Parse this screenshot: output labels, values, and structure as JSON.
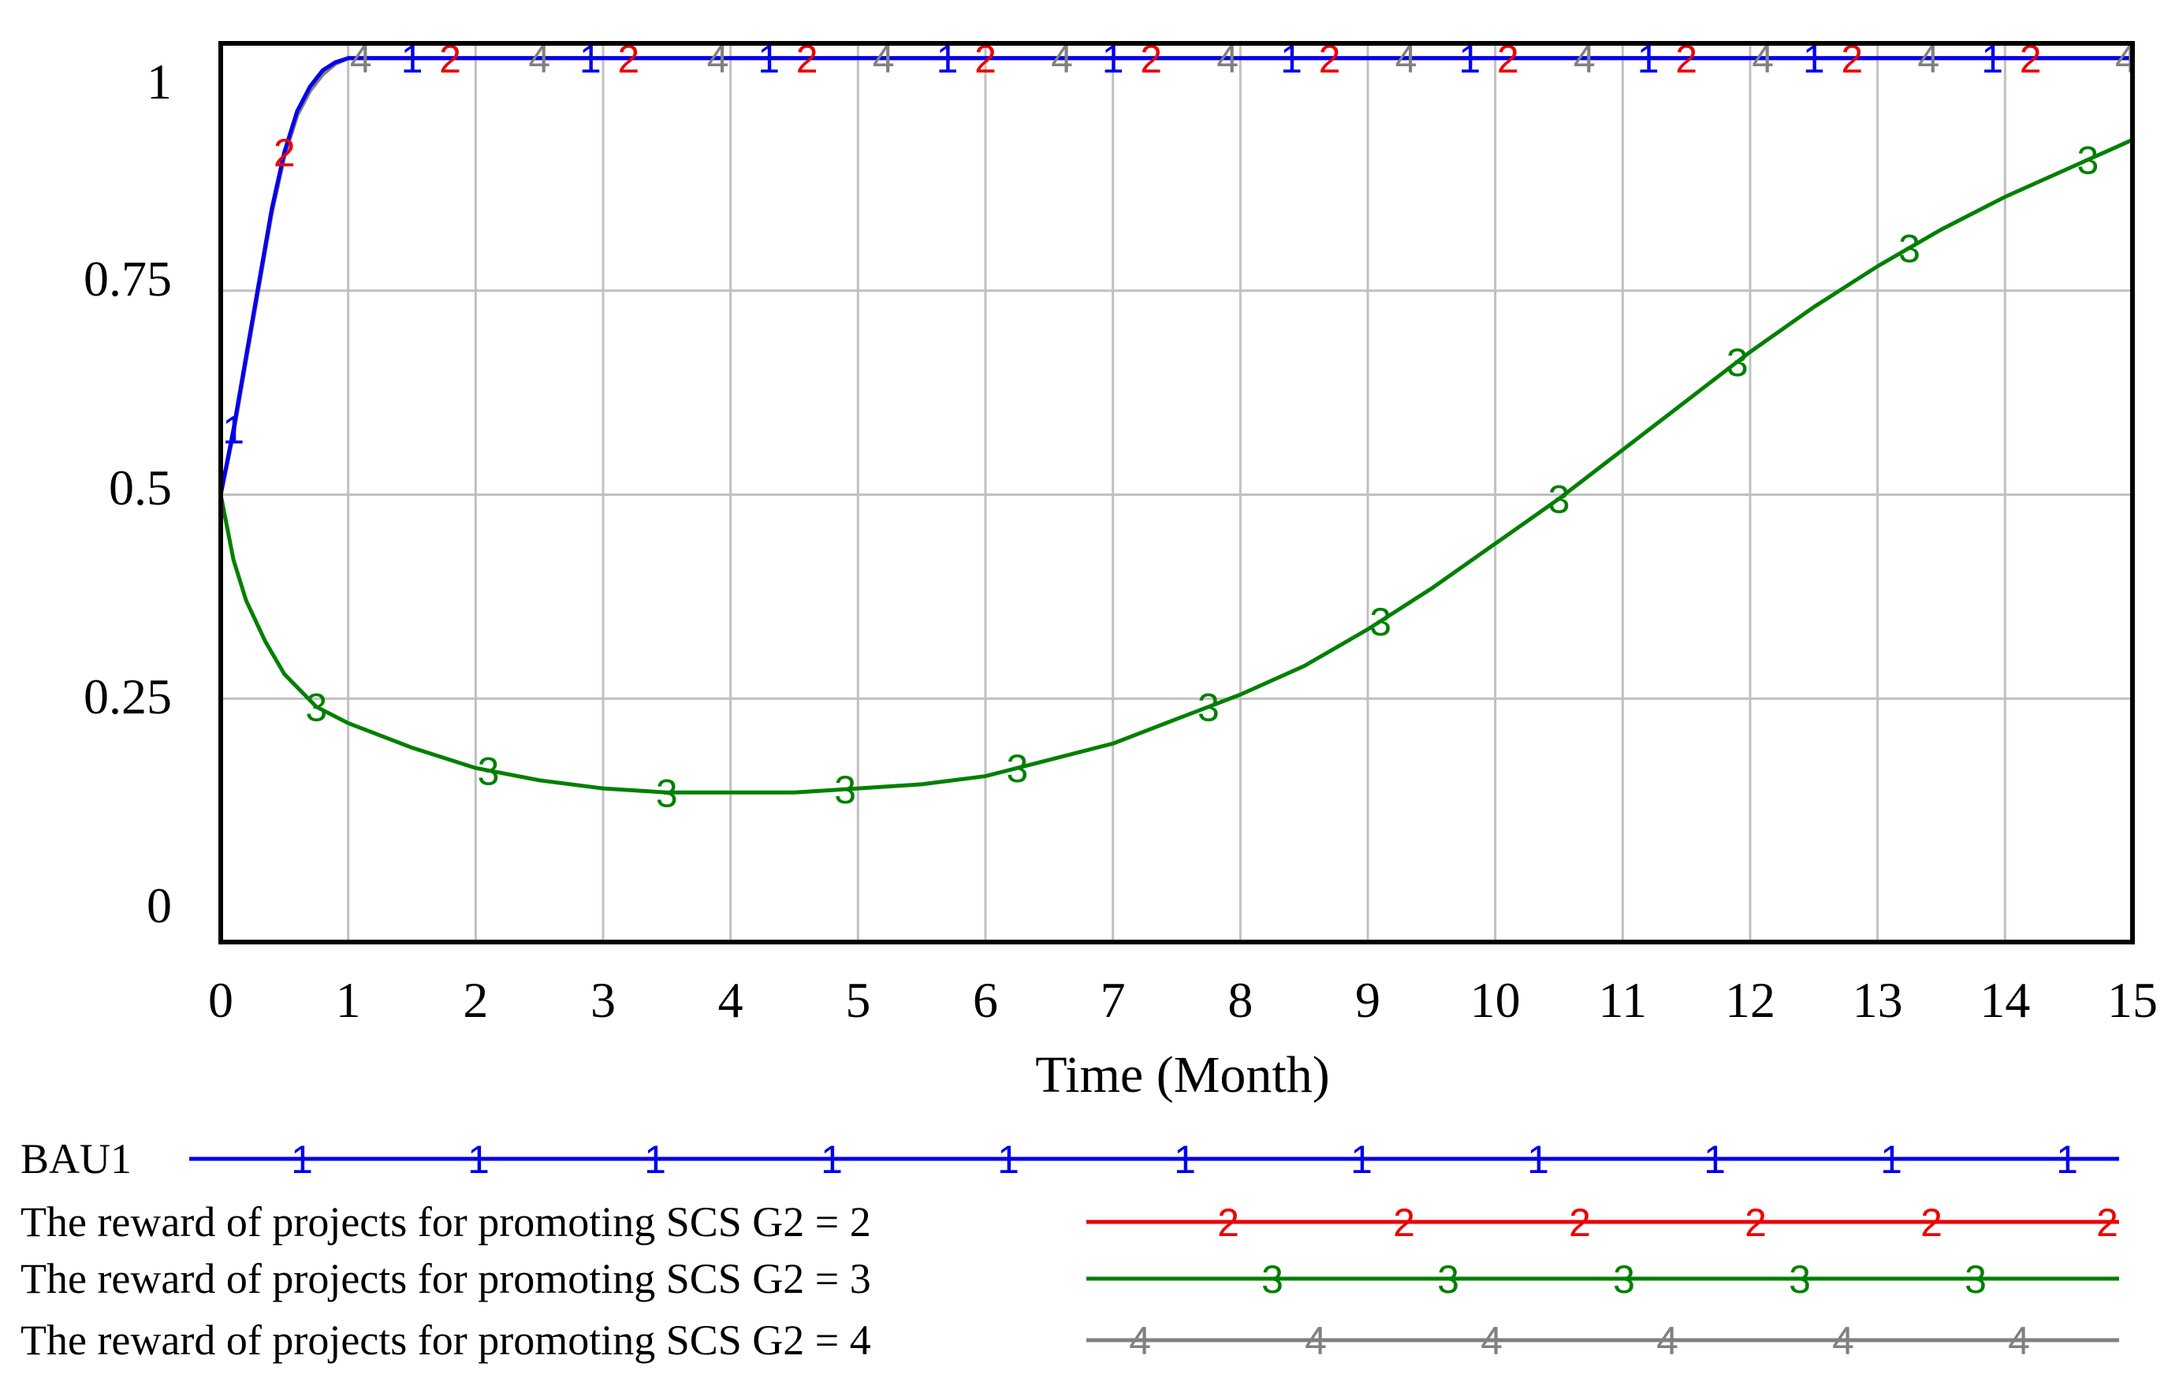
{
  "chart_data": {
    "type": "line",
    "xlabel": "Time (Month)",
    "ylabel": "",
    "xlim": [
      0,
      15
    ],
    "ylim": [
      0,
      1
    ],
    "x_ticks": [
      "0",
      "1",
      "2",
      "3",
      "4",
      "5",
      "6",
      "7",
      "8",
      "9",
      "10",
      "11",
      "12",
      "13",
      "14",
      "15"
    ],
    "y_ticks": [
      "0",
      "0.25",
      "0.5",
      "0.75",
      "1"
    ],
    "grid": true,
    "legend_position": "bottom",
    "series": [
      {
        "name": "BAU1",
        "marker": "1",
        "color": "#0000ee",
        "x": [
          0,
          0.1,
          0.2,
          0.3,
          0.4,
          0.5,
          0.6,
          0.7,
          0.8,
          0.9,
          1.0,
          1.5,
          2,
          3,
          4,
          5,
          6,
          7,
          8,
          9,
          10,
          11,
          12,
          13,
          14,
          15
        ],
        "y": [
          0.5,
          0.58,
          0.67,
          0.76,
          0.85,
          0.92,
          0.97,
          1.0,
          1.02,
          1.03,
          1.035,
          1.035,
          1.035,
          1.035,
          1.035,
          1.035,
          1.035,
          1.035,
          1.035,
          1.035,
          1.035,
          1.035,
          1.035,
          1.035,
          1.035,
          1.035
        ]
      },
      {
        "name": "The reward of projects for promoting SCS G2 = 2",
        "marker": "2",
        "color": "#ee0000",
        "x": [
          0,
          0.1,
          0.2,
          0.3,
          0.4,
          0.5,
          0.6,
          0.7,
          0.8,
          0.9,
          1.0,
          1.5,
          2,
          3,
          4,
          5,
          6,
          7,
          8,
          9,
          10,
          11,
          12,
          13,
          14,
          15
        ],
        "y": [
          0.5,
          0.58,
          0.67,
          0.76,
          0.85,
          0.92,
          0.97,
          1.0,
          1.02,
          1.03,
          1.035,
          1.035,
          1.035,
          1.035,
          1.035,
          1.035,
          1.035,
          1.035,
          1.035,
          1.035,
          1.035,
          1.035,
          1.035,
          1.035,
          1.035,
          1.035
        ]
      },
      {
        "name": "The reward of projects for promoting SCS G2 = 3",
        "marker": "3",
        "color": "#008000",
        "x": [
          0,
          0.1,
          0.2,
          0.35,
          0.5,
          0.75,
          1.0,
          1.5,
          2.0,
          2.5,
          3.0,
          3.5,
          4.0,
          4.5,
          5.0,
          5.5,
          6.0,
          6.5,
          7.0,
          7.5,
          8.0,
          8.5,
          9.0,
          9.5,
          10.0,
          10.5,
          11.0,
          11.5,
          12.0,
          12.5,
          13.0,
          13.5,
          14.0,
          14.5,
          15.0
        ],
        "y": [
          0.5,
          0.42,
          0.37,
          0.32,
          0.28,
          0.24,
          0.22,
          0.19,
          0.165,
          0.15,
          0.14,
          0.135,
          0.135,
          0.135,
          0.14,
          0.145,
          0.155,
          0.175,
          0.195,
          0.225,
          0.255,
          0.29,
          0.335,
          0.385,
          0.44,
          0.495,
          0.555,
          0.615,
          0.675,
          0.73,
          0.78,
          0.825,
          0.865,
          0.9,
          0.935
        ]
      },
      {
        "name": "The reward of projects for promoting SCS G2 = 4",
        "marker": "4",
        "color": "#808080",
        "x": [
          0,
          0.1,
          0.2,
          0.3,
          0.4,
          0.5,
          0.6,
          0.7,
          0.8,
          0.9,
          1.0,
          1.5,
          2,
          3,
          4,
          5,
          6,
          7,
          8,
          9,
          10,
          11,
          12,
          13,
          14,
          15
        ],
        "y": [
          0.5,
          0.575,
          0.665,
          0.755,
          0.845,
          0.915,
          0.965,
          0.995,
          1.015,
          1.028,
          1.035,
          1.035,
          1.035,
          1.035,
          1.035,
          1.035,
          1.035,
          1.035,
          1.035,
          1.035,
          1.035,
          1.035,
          1.035,
          1.035,
          1.035,
          1.035
        ]
      }
    ]
  }
}
